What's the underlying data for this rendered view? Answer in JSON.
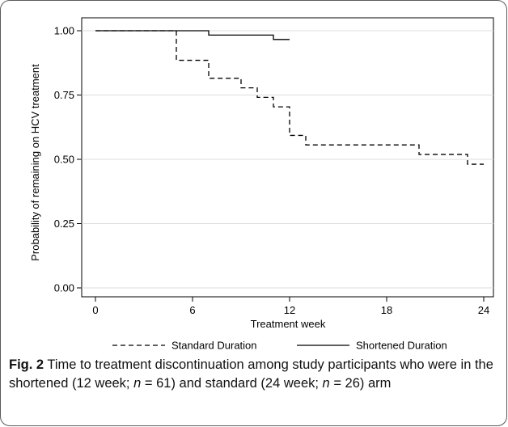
{
  "chart_data": {
    "type": "line",
    "step": true,
    "xlabel": "Treatment week",
    "ylabel": "Probability of remaining on HCV treatment",
    "xlim": [
      0,
      24
    ],
    "ylim": [
      0,
      1
    ],
    "x_ticks": [
      "0",
      "6",
      "12",
      "18",
      "24"
    ],
    "y_ticks": [
      "0.00",
      "0.25",
      "0.50",
      "0.75",
      "1.00"
    ],
    "grid": "horizontal",
    "legend_position": "bottom",
    "series": [
      {
        "name": "Standard Duration",
        "line_style": "dashed",
        "color": "#000000",
        "x": [
          0,
          5,
          7,
          9,
          10,
          11,
          12,
          13,
          20,
          23,
          24
        ],
        "y": [
          1.0,
          0.885,
          0.815,
          0.778,
          0.741,
          0.704,
          0.593,
          0.556,
          0.519,
          0.481,
          0.481
        ]
      },
      {
        "name": "Shortened Duration",
        "line_style": "solid",
        "color": "#000000",
        "x": [
          0,
          7,
          11,
          12
        ],
        "y": [
          1.0,
          0.983,
          0.966,
          0.966
        ]
      }
    ]
  },
  "caption": {
    "label": "Fig. 2",
    "text_before_n1": " Time to treatment discontinuation among study participants who were in the shortened (12 week; ",
    "n1_symbol": "n",
    "n1_value": " = 61) and standard (24 week; ",
    "n2_symbol": "n",
    "n2_value": " = 26) arm"
  }
}
